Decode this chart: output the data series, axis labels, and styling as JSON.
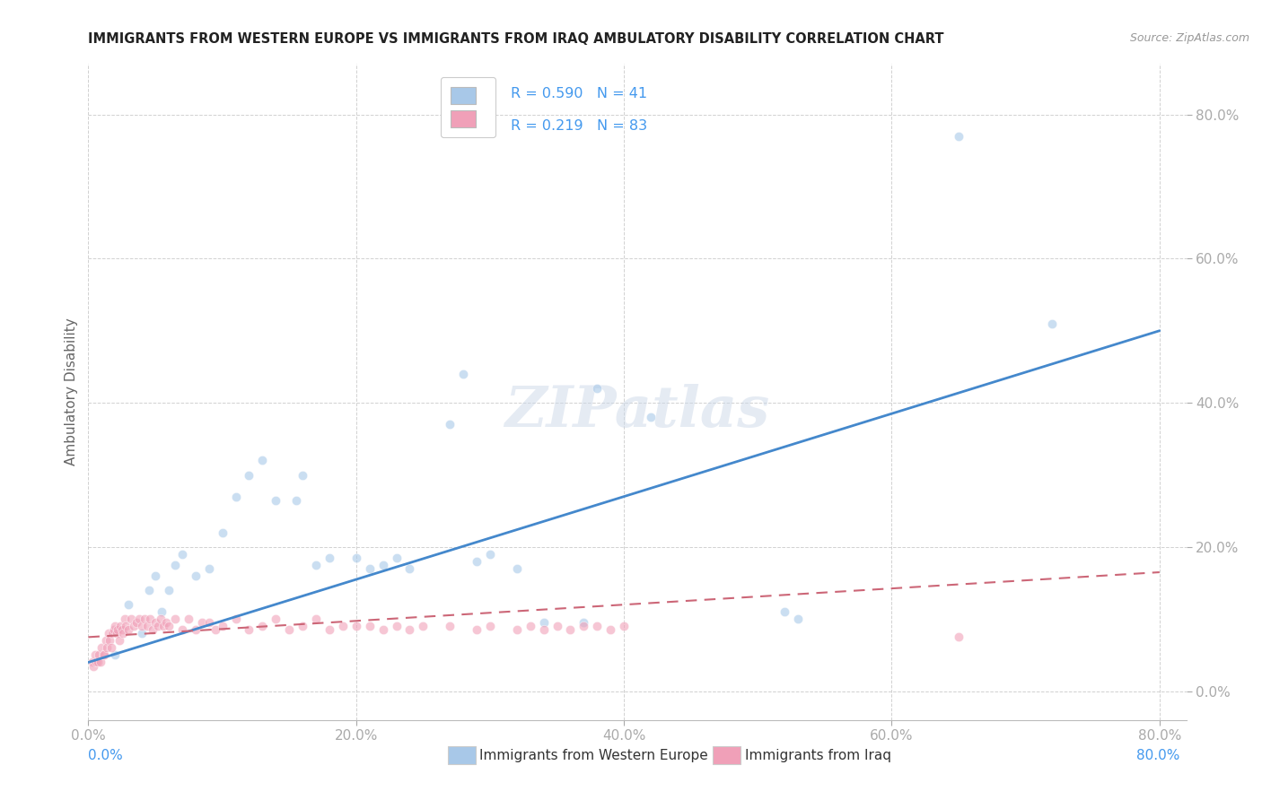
{
  "title": "IMMIGRANTS FROM WESTERN EUROPE VS IMMIGRANTS FROM IRAQ AMBULATORY DISABILITY CORRELATION CHART",
  "source": "Source: ZipAtlas.com",
  "ylabel": "Ambulatory Disability",
  "watermark": "ZIPatlas",
  "blue_R": "0.590",
  "blue_N": "41",
  "pink_R": "0.219",
  "pink_N": "83",
  "blue_label": "Immigrants from Western Europe",
  "pink_label": "Immigrants from Iraq",
  "blue_scatter_x": [
    0.02,
    0.03,
    0.04,
    0.045,
    0.05,
    0.055,
    0.06,
    0.065,
    0.07,
    0.08,
    0.09,
    0.1,
    0.11,
    0.12,
    0.13,
    0.14,
    0.155,
    0.16,
    0.17,
    0.18,
    0.2,
    0.21,
    0.22,
    0.23,
    0.24,
    0.27,
    0.28,
    0.29,
    0.3,
    0.32,
    0.34,
    0.37,
    0.38,
    0.42,
    0.52,
    0.53,
    0.65,
    0.72
  ],
  "blue_scatter_y": [
    0.05,
    0.12,
    0.08,
    0.14,
    0.16,
    0.11,
    0.14,
    0.175,
    0.19,
    0.16,
    0.17,
    0.22,
    0.27,
    0.3,
    0.32,
    0.265,
    0.265,
    0.3,
    0.175,
    0.185,
    0.185,
    0.17,
    0.175,
    0.185,
    0.17,
    0.37,
    0.44,
    0.18,
    0.19,
    0.17,
    0.095,
    0.095,
    0.42,
    0.38,
    0.11,
    0.1,
    0.77,
    0.51
  ],
  "pink_scatter_x": [
    0.003,
    0.004,
    0.005,
    0.006,
    0.007,
    0.008,
    0.009,
    0.01,
    0.011,
    0.012,
    0.013,
    0.014,
    0.015,
    0.016,
    0.017,
    0.018,
    0.019,
    0.02,
    0.021,
    0.022,
    0.023,
    0.024,
    0.025,
    0.026,
    0.027,
    0.028,
    0.03,
    0.032,
    0.034,
    0.036,
    0.038,
    0.04,
    0.042,
    0.044,
    0.046,
    0.048,
    0.05,
    0.052,
    0.054,
    0.056,
    0.058,
    0.06,
    0.065,
    0.07,
    0.075,
    0.08,
    0.085,
    0.09,
    0.095,
    0.1,
    0.11,
    0.12,
    0.13,
    0.14,
    0.15,
    0.16,
    0.17,
    0.18,
    0.19,
    0.2,
    0.21,
    0.22,
    0.23,
    0.24,
    0.25,
    0.27,
    0.29,
    0.3,
    0.32,
    0.33,
    0.34,
    0.35,
    0.36,
    0.37,
    0.38,
    0.39,
    0.4,
    0.65
  ],
  "pink_scatter_y": [
    0.04,
    0.035,
    0.05,
    0.04,
    0.04,
    0.05,
    0.04,
    0.06,
    0.05,
    0.05,
    0.07,
    0.06,
    0.08,
    0.07,
    0.06,
    0.08,
    0.085,
    0.09,
    0.08,
    0.085,
    0.07,
    0.09,
    0.085,
    0.08,
    0.1,
    0.09,
    0.085,
    0.1,
    0.09,
    0.095,
    0.1,
    0.09,
    0.1,
    0.09,
    0.1,
    0.085,
    0.095,
    0.09,
    0.1,
    0.09,
    0.095,
    0.09,
    0.1,
    0.085,
    0.1,
    0.085,
    0.095,
    0.095,
    0.085,
    0.09,
    0.1,
    0.085,
    0.09,
    0.1,
    0.085,
    0.09,
    0.1,
    0.085,
    0.09,
    0.09,
    0.09,
    0.085,
    0.09,
    0.085,
    0.09,
    0.09,
    0.085,
    0.09,
    0.085,
    0.09,
    0.085,
    0.09,
    0.085,
    0.09,
    0.09,
    0.085,
    0.09,
    0.075
  ],
  "blue_line_x": [
    0.0,
    0.8
  ],
  "blue_line_y": [
    0.04,
    0.5
  ],
  "pink_line_x": [
    0.0,
    0.8
  ],
  "pink_line_y": [
    0.075,
    0.165
  ],
  "xlim": [
    0.0,
    0.82
  ],
  "ylim": [
    -0.04,
    0.87
  ],
  "scatter_size": 55,
  "scatter_alpha": 0.6,
  "blue_color": "#a8c8e8",
  "pink_color": "#f0a0b8",
  "blue_line_color": "#4488cc",
  "pink_line_color": "#cc6677",
  "grid_color": "#cccccc",
  "tick_color": "#4499ee",
  "title_color": "#222222",
  "ylabel_color": "#666666",
  "legend_text_color": "#4499ee"
}
